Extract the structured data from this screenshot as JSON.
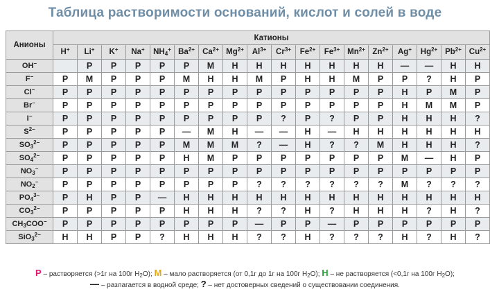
{
  "title": "Таблица растворимости оснований, кислот и солей в воде",
  "header": {
    "anions_label": "Анионы",
    "cations_label": "Катионы"
  },
  "cations": [
    {
      "base": "H",
      "charge": "+"
    },
    {
      "base": "Li",
      "charge": "+"
    },
    {
      "base": "K",
      "charge": "+"
    },
    {
      "base": "Na",
      "charge": "+"
    },
    {
      "base": "NH",
      "sub": "4",
      "charge": "+"
    },
    {
      "base": "Ba",
      "charge": "2+"
    },
    {
      "base": "Ca",
      "charge": "2+"
    },
    {
      "base": "Mg",
      "charge": "2+"
    },
    {
      "base": "Al",
      "charge": "3+"
    },
    {
      "base": "Cr",
      "charge": "3+"
    },
    {
      "base": "Fe",
      "charge": "2+"
    },
    {
      "base": "Fe",
      "charge": "3+"
    },
    {
      "base": "Mn",
      "charge": "2+"
    },
    {
      "base": "Zn",
      "charge": "2+"
    },
    {
      "base": "Ag",
      "charge": "+"
    },
    {
      "base": "Hg",
      "charge": "2+"
    },
    {
      "base": "Pb",
      "charge": "2+"
    },
    {
      "base": "Cu",
      "charge": "2+"
    }
  ],
  "anions": [
    {
      "base": "OH",
      "charge": "−",
      "cells": [
        "",
        "Р",
        "Р",
        "Р",
        "Р",
        "Р",
        "М",
        "Н",
        "Н",
        "Н",
        "Н",
        "Н",
        "Н",
        "Н",
        "—",
        "—",
        "Н",
        "Н"
      ]
    },
    {
      "base": "F",
      "charge": "−",
      "cells": [
        "Р",
        "М",
        "Р",
        "Р",
        "Р",
        "М",
        "Н",
        "Н",
        "М",
        "Р",
        "Н",
        "Н",
        "М",
        "Р",
        "Р",
        "?",
        "Н",
        "Р"
      ]
    },
    {
      "base": "Cl",
      "charge": "−",
      "cells": [
        "Р",
        "Р",
        "Р",
        "Р",
        "Р",
        "Р",
        "Р",
        "Р",
        "Р",
        "Р",
        "Р",
        "Р",
        "Р",
        "Р",
        "Н",
        "Р",
        "М",
        "Р"
      ]
    },
    {
      "base": "Br",
      "charge": "−",
      "cells": [
        "Р",
        "Р",
        "Р",
        "Р",
        "Р",
        "Р",
        "Р",
        "Р",
        "Р",
        "Р",
        "Р",
        "Р",
        "Р",
        "Р",
        "Н",
        "М",
        "М",
        "Р"
      ]
    },
    {
      "base": "I",
      "charge": "−",
      "cells": [
        "Р",
        "Р",
        "Р",
        "Р",
        "Р",
        "Р",
        "Р",
        "Р",
        "Р",
        "?",
        "Р",
        "?",
        "Р",
        "Р",
        "Н",
        "Н",
        "Н",
        "?"
      ]
    },
    {
      "base": "S",
      "charge": "2−",
      "cells": [
        "Р",
        "Р",
        "Р",
        "Р",
        "Р",
        "—",
        "М",
        "Н",
        "—",
        "—",
        "Н",
        "—",
        "Н",
        "Н",
        "Н",
        "Н",
        "Н",
        "Н"
      ]
    },
    {
      "base": "SO",
      "sub": "3",
      "charge": "2−",
      "cells": [
        "Р",
        "Р",
        "Р",
        "Р",
        "Р",
        "М",
        "М",
        "М",
        "?",
        "—",
        "Н",
        "?",
        "?",
        "М",
        "Н",
        "Н",
        "Н",
        "?"
      ]
    },
    {
      "base": "SO",
      "sub": "4",
      "charge": "2−",
      "cells": [
        "Р",
        "Р",
        "Р",
        "Р",
        "Р",
        "Н",
        "М",
        "Р",
        "Р",
        "Р",
        "Р",
        "Р",
        "Р",
        "Р",
        "М",
        "—",
        "Н",
        "Р"
      ]
    },
    {
      "base": "NO",
      "sub": "3",
      "charge": "−",
      "cells": [
        "Р",
        "Р",
        "Р",
        "Р",
        "Р",
        "Р",
        "Р",
        "Р",
        "Р",
        "Р",
        "Р",
        "Р",
        "Р",
        "Р",
        "Р",
        "Р",
        "Р",
        "Р"
      ]
    },
    {
      "base": "NO",
      "sub": "2",
      "charge": "−",
      "cells": [
        "Р",
        "Р",
        "Р",
        "Р",
        "Р",
        "Р",
        "Р",
        "Р",
        "?",
        "?",
        "?",
        "?",
        "?",
        "?",
        "М",
        "?",
        "?",
        "?"
      ]
    },
    {
      "base": "PO",
      "sub": "4",
      "charge": "3−",
      "cells": [
        "Р",
        "Н",
        "Р",
        "Р",
        "—",
        "Н",
        "Н",
        "Н",
        "Н",
        "Н",
        "Н",
        "Н",
        "Н",
        "Н",
        "Н",
        "Н",
        "Н",
        "Н"
      ]
    },
    {
      "base": "CO",
      "sub": "3",
      "charge": "2−",
      "cells": [
        "Р",
        "Р",
        "Р",
        "Р",
        "Р",
        "Н",
        "Н",
        "Н",
        "?",
        "?",
        "Н",
        "?",
        "Н",
        "Н",
        "Н",
        "?",
        "Н",
        "?"
      ]
    },
    {
      "base": "CH",
      "sub": "3",
      "base2": "COO",
      "charge": "−",
      "cells": [
        "Р",
        "Р",
        "Р",
        "Р",
        "Р",
        "Р",
        "Р",
        "Р",
        "—",
        "Р",
        "Р",
        "—",
        "Р",
        "Р",
        "Р",
        "Р",
        "Р",
        "Р"
      ]
    },
    {
      "base": "SiO",
      "sub": "3",
      "charge": "2−",
      "cells": [
        "Н",
        "Н",
        "Р",
        "Р",
        "?",
        "Н",
        "Н",
        "Н",
        "?",
        "?",
        "Н",
        "?",
        "?",
        "?",
        "Н",
        "?",
        "Н",
        "?"
      ]
    }
  ],
  "legend": {
    "p_key": "Р",
    "p_text_before": " – растворяется (>1г на 100г H",
    "p_text_sub": "2",
    "p_text_after": "O); ",
    "m_key": "М",
    "m_text_before": " – мало растворяется (от 0,1г до 1г на 100г H",
    "m_text_sub": "2",
    "m_text_after": "O); ",
    "h_key": "Н",
    "h_text_before": " – не растворяется (<0,1г на 100г H",
    "h_text_sub": "2",
    "h_text_after": "O);",
    "dash_key": "—",
    "dash_text": " – разлагается в водной среде; ",
    "q_key": "?",
    "q_text": " – нет достоверных сведений о существовании соединения."
  },
  "colors": {
    "soluble": "#e0156e",
    "slightly": "#e4a81b",
    "insoluble": "#2aa33a",
    "title": "#6f8ea6"
  }
}
